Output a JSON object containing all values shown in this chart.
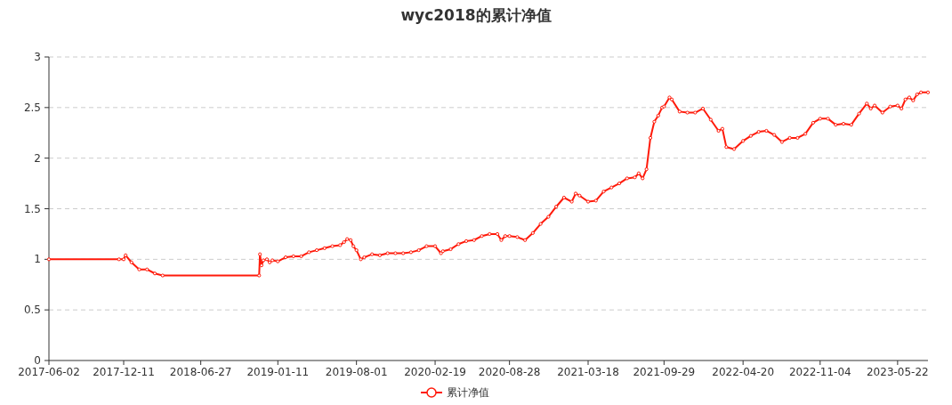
{
  "chart_data": {
    "type": "line",
    "title": "wyc2018的累计净值",
    "x": [
      "2017-06-02",
      "2017-11-29",
      "2017-12-11",
      "2017-12-16",
      "2017-12-31",
      "2018-01-20",
      "2018-02-09",
      "2018-03-01",
      "2018-03-21",
      "2018-11-24",
      "2018-11-26",
      "2018-11-30",
      "2018-12-05",
      "2018-12-14",
      "2018-12-21",
      "2018-12-28",
      "2019-01-11",
      "2019-01-31",
      "2019-02-20",
      "2019-03-12",
      "2019-04-01",
      "2019-04-21",
      "2019-05-11",
      "2019-05-31",
      "2019-06-20",
      "2019-06-30",
      "2019-07-08",
      "2019-07-17",
      "2019-07-24",
      "2019-08-01",
      "2019-08-12",
      "2019-08-21",
      "2019-09-10",
      "2019-09-30",
      "2019-10-20",
      "2019-11-09",
      "2019-11-29",
      "2019-12-19",
      "2020-01-08",
      "2020-01-28",
      "2020-02-19",
      "2020-03-05",
      "2020-03-10",
      "2020-03-30",
      "2020-04-19",
      "2020-05-09",
      "2020-05-29",
      "2020-06-18",
      "2020-07-08",
      "2020-07-28",
      "2020-08-07",
      "2020-08-17",
      "2020-08-28",
      "2020-09-17",
      "2020-10-07",
      "2020-10-27",
      "2020-11-16",
      "2020-12-06",
      "2020-12-26",
      "2021-01-15",
      "2021-02-04",
      "2021-02-14",
      "2021-02-24",
      "2021-03-18",
      "2021-04-07",
      "2021-04-27",
      "2021-05-17",
      "2021-06-06",
      "2021-06-26",
      "2021-07-16",
      "2021-07-26",
      "2021-08-05",
      "2021-08-15",
      "2021-08-25",
      "2021-09-04",
      "2021-09-14",
      "2021-09-24",
      "2021-09-29",
      "2021-10-13",
      "2021-10-19",
      "2021-11-08",
      "2021-11-28",
      "2021-12-18",
      "2022-01-07",
      "2022-01-27",
      "2022-02-16",
      "2022-02-26",
      "2022-03-08",
      "2022-03-28",
      "2022-04-20",
      "2022-05-10",
      "2022-05-30",
      "2022-06-19",
      "2022-07-09",
      "2022-07-29",
      "2022-08-18",
      "2022-09-07",
      "2022-09-27",
      "2022-10-17",
      "2022-11-04",
      "2022-11-24",
      "2022-12-14",
      "2023-01-03",
      "2023-01-23",
      "2023-02-12",
      "2023-03-04",
      "2023-03-14",
      "2023-03-24",
      "2023-04-13",
      "2023-05-03",
      "2023-05-22",
      "2023-06-01",
      "2023-06-11",
      "2023-06-21",
      "2023-07-01",
      "2023-07-11",
      "2023-07-21",
      "2023-08-08"
    ],
    "series": [
      {
        "name": "累计净值",
        "color": "#ff1a0a",
        "values": [
          1.0,
          1.0,
          1.0,
          1.04,
          0.97,
          0.9,
          0.9,
          0.86,
          0.84,
          0.84,
          1.05,
          0.94,
          0.99,
          1.0,
          0.97,
          0.99,
          0.98,
          1.02,
          1.03,
          1.03,
          1.07,
          1.09,
          1.11,
          1.13,
          1.14,
          1.17,
          1.2,
          1.19,
          1.13,
          1.09,
          1.0,
          1.02,
          1.05,
          1.04,
          1.06,
          1.06,
          1.06,
          1.07,
          1.09,
          1.13,
          1.13,
          1.06,
          1.08,
          1.1,
          1.15,
          1.18,
          1.19,
          1.23,
          1.25,
          1.25,
          1.19,
          1.23,
          1.23,
          1.22,
          1.19,
          1.26,
          1.35,
          1.42,
          1.52,
          1.61,
          1.57,
          1.65,
          1.63,
          1.57,
          1.58,
          1.67,
          1.71,
          1.75,
          1.8,
          1.81,
          1.85,
          1.8,
          1.89,
          2.2,
          2.36,
          2.42,
          2.5,
          2.51,
          2.6,
          2.58,
          2.46,
          2.45,
          2.45,
          2.49,
          2.38,
          2.27,
          2.29,
          2.11,
          2.09,
          2.17,
          2.22,
          2.26,
          2.27,
          2.23,
          2.16,
          2.2,
          2.2,
          2.24,
          2.35,
          2.39,
          2.39,
          2.33,
          2.34,
          2.33,
          2.44,
          2.54,
          2.49,
          2.52,
          2.45,
          2.51,
          2.52,
          2.49,
          2.58,
          2.6,
          2.57,
          2.63,
          2.65,
          2.65
        ]
      }
    ],
    "xlim": [
      "2017-06-02",
      "2023-08-08"
    ],
    "xticks": [
      "2017-06-02",
      "2017-12-11",
      "2018-06-27",
      "2019-01-11",
      "2019-08-01",
      "2020-02-19",
      "2020-08-28",
      "2021-03-18",
      "2021-09-29",
      "2022-04-20",
      "2022-11-04",
      "2023-05-22"
    ],
    "ylim": [
      0,
      3
    ],
    "yticks": [
      0,
      0.5,
      1,
      1.5,
      2,
      2.5,
      3
    ],
    "grid": "y",
    "legend": "bottom",
    "marker": "circle",
    "line_style": "solid"
  }
}
